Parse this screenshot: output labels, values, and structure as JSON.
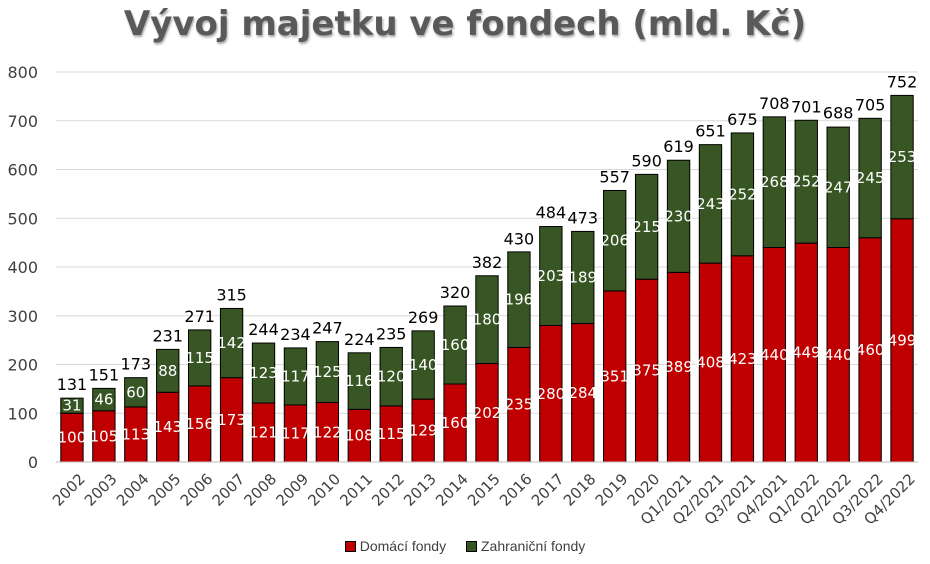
{
  "chart_data": {
    "type": "bar",
    "stacked": true,
    "title": "Vývoj majetku ve fondech (mld. Kč)",
    "xlabel": "",
    "ylabel": "",
    "ylim": [
      0,
      800
    ],
    "yticks": [
      0,
      100,
      200,
      300,
      400,
      500,
      600,
      700,
      800
    ],
    "grid": true,
    "legend_position": "bottom",
    "categories": [
      "2002",
      "2003",
      "2004",
      "2005",
      "2006",
      "2007",
      "2008",
      "2009",
      "2010",
      "2011",
      "2012",
      "2013",
      "2014",
      "2015",
      "2016",
      "2017",
      "2018",
      "2019",
      "2020",
      "Q1/2021",
      "Q2/2021",
      "Q3/2021",
      "Q4/2021",
      "Q1/2022",
      "Q2/2022",
      "Q3/2022",
      "Q4/2022"
    ],
    "series": [
      {
        "name": "Domácí fondy",
        "color": "#c00000",
        "values": [
          100,
          105,
          113,
          143,
          156,
          173,
          121,
          117,
          122,
          108,
          115,
          129,
          160,
          202,
          235,
          280,
          284,
          351,
          375,
          389,
          408,
          423,
          440,
          449,
          440,
          460,
          499
        ]
      },
      {
        "name": "Zahraniční fondy",
        "color": "#375623",
        "values": [
          31,
          46,
          60,
          88,
          115,
          142,
          123,
          117,
          125,
          116,
          120,
          140,
          160,
          180,
          196,
          203,
          189,
          206,
          215,
          230,
          243,
          252,
          268,
          252,
          247,
          245,
          253
        ]
      }
    ],
    "totals": [
      131,
      151,
      173,
      231,
      271,
      315,
      244,
      234,
      247,
      224,
      235,
      269,
      320,
      382,
      430,
      484,
      473,
      557,
      590,
      619,
      651,
      675,
      708,
      701,
      688,
      705,
      752
    ]
  }
}
